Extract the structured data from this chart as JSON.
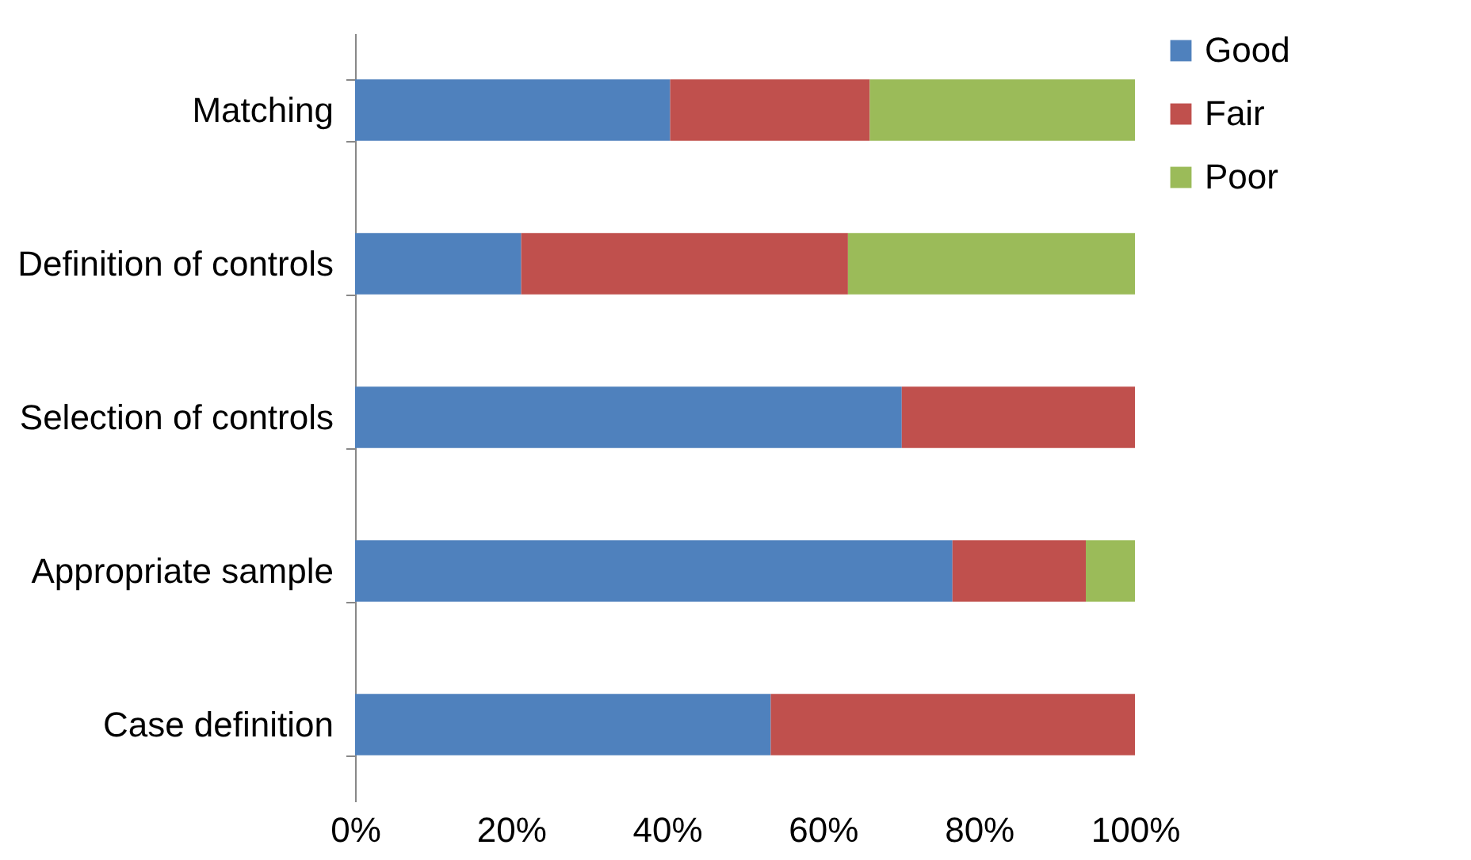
{
  "chart_data": {
    "type": "bar",
    "orientation": "horizontal",
    "stacked": true,
    "categories": [
      "Matching",
      "Definition of controls",
      "Selection of controls",
      "Appropriate sample",
      "Case definition"
    ],
    "series": [
      {
        "name": "Good",
        "color": "#4f81bd",
        "values": [
          40.4,
          21.3,
          70.1,
          76.6,
          53.3
        ]
      },
      {
        "name": "Fair",
        "color": "#c0504d",
        "values": [
          25.6,
          41.9,
          29.9,
          17.1,
          46.7
        ]
      },
      {
        "name": "Poor",
        "color": "#9bbb59",
        "values": [
          34,
          36.8,
          null,
          6.3,
          null
        ]
      }
    ],
    "xlim": [
      0,
      100
    ],
    "xticks": [
      {
        "value": 0,
        "label": "0%"
      },
      {
        "value": 20,
        "label": "20%"
      },
      {
        "value": 40,
        "label": "40%"
      },
      {
        "value": 60,
        "label": "60%"
      },
      {
        "value": 80,
        "label": "80%"
      },
      {
        "value": 100,
        "label": "100%"
      }
    ],
    "grid": false,
    "legend": "right"
  }
}
